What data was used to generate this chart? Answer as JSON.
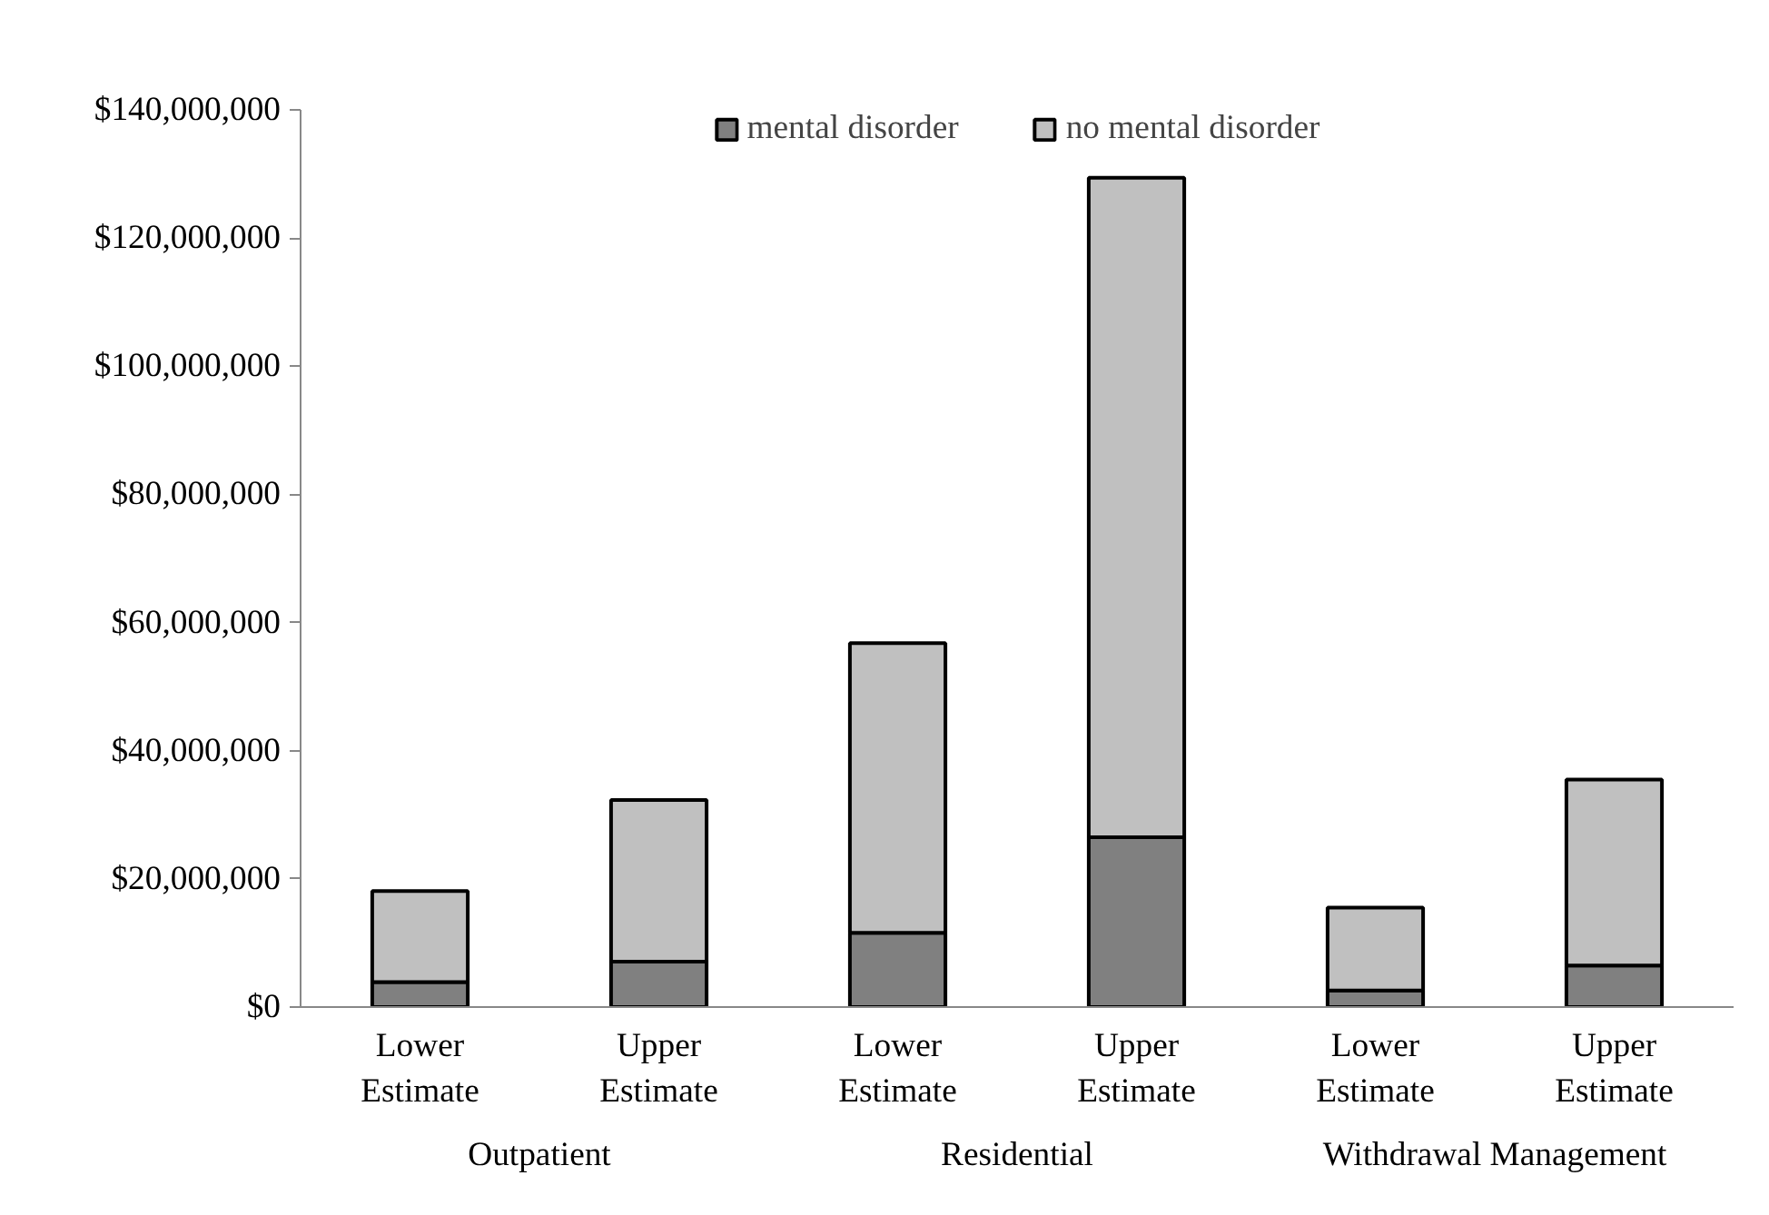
{
  "chart_data": {
    "type": "bar",
    "stacked": true,
    "categories": [
      "Lower Estimate",
      "Upper Estimate",
      "Lower Estimate",
      "Upper Estimate",
      "Lower Estimate",
      "Upper Estimate"
    ],
    "series": [
      {
        "name": "mental disorder",
        "color": "#808080",
        "values": [
          3900000,
          7100000,
          11600000,
          26500000,
          2600000,
          6500000
        ]
      },
      {
        "name": "no mental disorder",
        "color": "#c0c0c0",
        "values": [
          14200000,
          25200000,
          45200000,
          102900000,
          12900000,
          29000000
        ]
      }
    ],
    "annotations": [
      "Outpatient",
      "Residential",
      "Withdrawal Management"
    ],
    "ylim": [
      0,
      140000000
    ],
    "yticks": [
      {
        "value": 0,
        "label": "$0"
      },
      {
        "value": 20000000,
        "label": "$20,000,000"
      },
      {
        "value": 40000000,
        "label": "$40,000,000"
      },
      {
        "value": 60000000,
        "label": "$60,000,000"
      },
      {
        "value": 80000000,
        "label": "$80,000,000"
      },
      {
        "value": 100000000,
        "label": "$100,000,000"
      },
      {
        "value": 120000000,
        "label": "$120,000,000"
      },
      {
        "value": 140000000,
        "label": "$140,000,000"
      }
    ],
    "grid": false,
    "legend": "top"
  }
}
